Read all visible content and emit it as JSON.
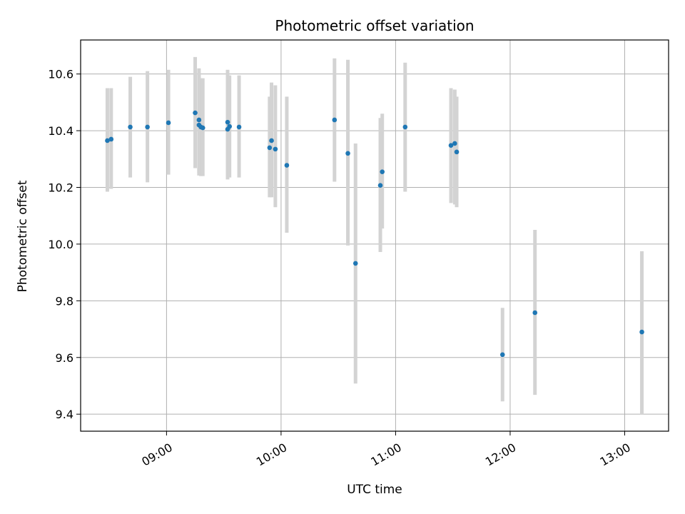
{
  "chart_data": {
    "type": "scatter",
    "title": "Photometric offset variation",
    "xlabel": "UTC time",
    "ylabel": "Photometric offset",
    "x_ticks": [
      "09:00",
      "10:00",
      "11:00",
      "12:00",
      "13:00"
    ],
    "y_ticks": [
      "9.4",
      "9.6",
      "9.8",
      "10.0",
      "10.2",
      "10.4",
      "10.6"
    ],
    "xlim": [
      "08:15",
      "13:23"
    ],
    "ylim": [
      9.34,
      10.72
    ],
    "grid": true,
    "point_color": "#1f77b4",
    "errorbar_color": "#d3d3d3",
    "points": [
      {
        "t": "08:29",
        "y": 10.365,
        "lo": 10.185,
        "hi": 10.55
      },
      {
        "t": "08:31",
        "y": 10.37,
        "lo": 10.195,
        "hi": 10.55
      },
      {
        "t": "08:41",
        "y": 10.413,
        "lo": 10.235,
        "hi": 10.59
      },
      {
        "t": "08:50",
        "y": 10.413,
        "lo": 10.218,
        "hi": 10.61
      },
      {
        "t": "09:01",
        "y": 10.428,
        "lo": 10.245,
        "hi": 10.615
      },
      {
        "t": "09:15",
        "y": 10.463,
        "lo": 10.268,
        "hi": 10.66
      },
      {
        "t": "09:17",
        "y": 10.438,
        "lo": 10.25,
        "hi": 10.62
      },
      {
        "t": "09:17",
        "y": 10.42,
        "lo": 10.242,
        "hi": 10.605
      },
      {
        "t": "09:18",
        "y": 10.413,
        "lo": 10.24,
        "hi": 10.585
      },
      {
        "t": "09:19",
        "y": 10.41,
        "lo": 10.24,
        "hi": 10.585
      },
      {
        "t": "09:32",
        "y": 10.43,
        "lo": 10.228,
        "hi": 10.615
      },
      {
        "t": "09:32",
        "y": 10.405,
        "lo": 10.23,
        "hi": 10.58
      },
      {
        "t": "09:33",
        "y": 10.415,
        "lo": 10.235,
        "hi": 10.595
      },
      {
        "t": "09:38",
        "y": 10.413,
        "lo": 10.235,
        "hi": 10.595
      },
      {
        "t": "09:54",
        "y": 10.34,
        "lo": 10.165,
        "hi": 10.52
      },
      {
        "t": "09:55",
        "y": 10.365,
        "lo": 10.165,
        "hi": 10.57
      },
      {
        "t": "09:57",
        "y": 10.335,
        "lo": 10.13,
        "hi": 10.56
      },
      {
        "t": "10:03",
        "y": 10.278,
        "lo": 10.04,
        "hi": 10.52
      },
      {
        "t": "10:28",
        "y": 10.438,
        "lo": 10.22,
        "hi": 10.655
      },
      {
        "t": "10:35",
        "y": 10.32,
        "lo": 9.995,
        "hi": 10.65
      },
      {
        "t": "10:39",
        "y": 9.932,
        "lo": 9.508,
        "hi": 10.355
      },
      {
        "t": "10:52",
        "y": 10.207,
        "lo": 9.972,
        "hi": 10.445
      },
      {
        "t": "10:53",
        "y": 10.255,
        "lo": 10.055,
        "hi": 10.46
      },
      {
        "t": "11:05",
        "y": 10.413,
        "lo": 10.185,
        "hi": 10.64
      },
      {
        "t": "11:29",
        "y": 10.348,
        "lo": 10.145,
        "hi": 10.55
      },
      {
        "t": "11:31",
        "y": 10.355,
        "lo": 10.14,
        "hi": 10.545
      },
      {
        "t": "11:32",
        "y": 10.325,
        "lo": 10.13,
        "hi": 10.52
      },
      {
        "t": "11:56",
        "y": 9.61,
        "lo": 9.445,
        "hi": 9.775
      },
      {
        "t": "12:13",
        "y": 9.758,
        "lo": 9.468,
        "hi": 10.05
      },
      {
        "t": "13:09",
        "y": 9.69,
        "lo": 9.398,
        "hi": 9.975
      }
    ]
  }
}
